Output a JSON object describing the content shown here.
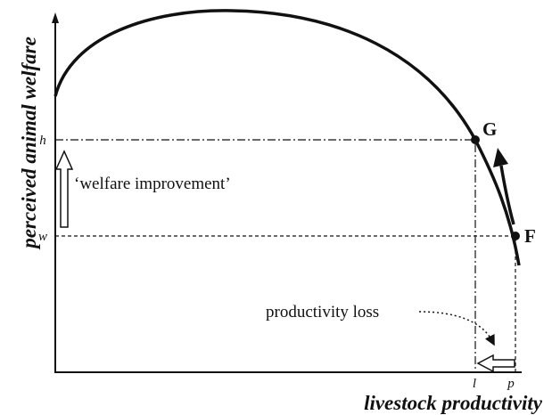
{
  "axes": {
    "y_label": "perceived animal welfare",
    "x_label": "livestock productivity"
  },
  "ticks": {
    "y": [
      "h",
      "w"
    ],
    "x": [
      "l",
      "p"
    ]
  },
  "points": [
    "G",
    "F"
  ],
  "annotations": [
    "‘welfare improvement’",
    "productivity loss"
  ]
}
